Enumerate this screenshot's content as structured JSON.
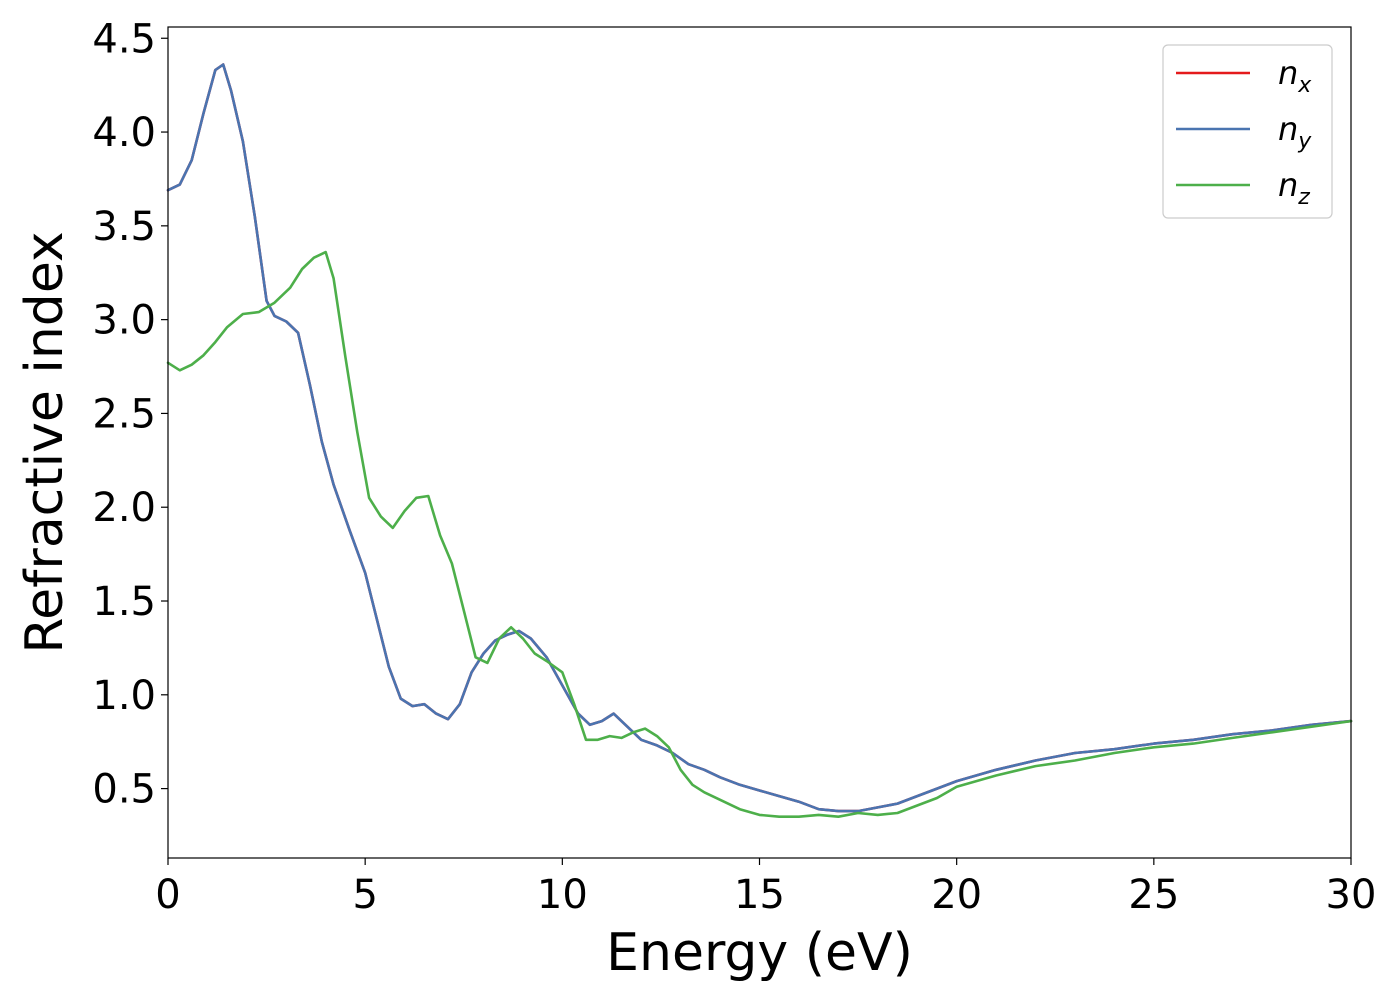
{
  "chart_data": {
    "type": "line",
    "title": "",
    "xlabel": "Energy (eV)",
    "ylabel": "Refractive index",
    "xlim": [
      0,
      30
    ],
    "ylim": [
      0.13,
      4.56
    ],
    "xticks": [
      0,
      5,
      10,
      15,
      20,
      25,
      30
    ],
    "xtick_labels": [
      "0",
      "5",
      "10",
      "15",
      "20",
      "25",
      "30"
    ],
    "yticks": [
      0.5,
      1.0,
      1.5,
      2.0,
      2.5,
      3.0,
      3.5,
      4.0,
      4.5
    ],
    "ytick_labels": [
      "0.5",
      "1.0",
      "1.5",
      "2.0",
      "2.5",
      "3.0",
      "3.5",
      "4.0",
      "4.5"
    ],
    "grid": false,
    "legend_position": "top-right",
    "series": [
      {
        "name": "n_x",
        "legend_base": "n",
        "legend_sub": "x",
        "color": "#e41a1c",
        "x": [
          0,
          0.3,
          0.6,
          0.9,
          1.2,
          1.4,
          1.6,
          1.9,
          2.2,
          2.5,
          2.7,
          3.0,
          3.3,
          3.6,
          3.9,
          4.2,
          4.6,
          5.0,
          5.3,
          5.6,
          5.9,
          6.2,
          6.5,
          6.8,
          7.1,
          7.4,
          7.7,
          8.0,
          8.3,
          8.6,
          8.9,
          9.2,
          9.6,
          10.0,
          10.4,
          10.7,
          11.0,
          11.3,
          11.6,
          12.0,
          12.4,
          12.8,
          13.2,
          13.6,
          14.0,
          14.5,
          15.0,
          15.5,
          16.0,
          16.5,
          17.0,
          17.5,
          18.0,
          18.5,
          19.0,
          19.5,
          20.0,
          21.0,
          22.0,
          23.0,
          24.0,
          25.0,
          26.0,
          27.0,
          28.0,
          29.0,
          30.0
        ],
        "y": [
          3.69,
          3.72,
          3.85,
          4.1,
          4.33,
          4.36,
          4.22,
          3.95,
          3.55,
          3.1,
          3.02,
          2.99,
          2.93,
          2.65,
          2.35,
          2.12,
          1.88,
          1.65,
          1.4,
          1.15,
          0.98,
          0.94,
          0.95,
          0.9,
          0.87,
          0.95,
          1.12,
          1.22,
          1.29,
          1.32,
          1.34,
          1.3,
          1.2,
          1.05,
          0.9,
          0.84,
          0.86,
          0.9,
          0.84,
          0.76,
          0.73,
          0.69,
          0.63,
          0.6,
          0.56,
          0.52,
          0.49,
          0.46,
          0.43,
          0.39,
          0.38,
          0.38,
          0.4,
          0.42,
          0.46,
          0.5,
          0.54,
          0.6,
          0.65,
          0.69,
          0.71,
          0.74,
          0.76,
          0.79,
          0.81,
          0.84,
          0.86
        ]
      },
      {
        "name": "n_y",
        "legend_base": "n",
        "legend_sub": "y",
        "color": "#4a74b0",
        "x": [
          0,
          0.3,
          0.6,
          0.9,
          1.2,
          1.4,
          1.6,
          1.9,
          2.2,
          2.5,
          2.7,
          3.0,
          3.3,
          3.6,
          3.9,
          4.2,
          4.6,
          5.0,
          5.3,
          5.6,
          5.9,
          6.2,
          6.5,
          6.8,
          7.1,
          7.4,
          7.7,
          8.0,
          8.3,
          8.6,
          8.9,
          9.2,
          9.6,
          10.0,
          10.4,
          10.7,
          11.0,
          11.3,
          11.6,
          12.0,
          12.4,
          12.8,
          13.2,
          13.6,
          14.0,
          14.5,
          15.0,
          15.5,
          16.0,
          16.5,
          17.0,
          17.5,
          18.0,
          18.5,
          19.0,
          19.5,
          20.0,
          21.0,
          22.0,
          23.0,
          24.0,
          25.0,
          26.0,
          27.0,
          28.0,
          29.0,
          30.0
        ],
        "y": [
          3.69,
          3.72,
          3.85,
          4.1,
          4.33,
          4.36,
          4.22,
          3.95,
          3.55,
          3.1,
          3.02,
          2.99,
          2.93,
          2.65,
          2.35,
          2.12,
          1.88,
          1.65,
          1.4,
          1.15,
          0.98,
          0.94,
          0.95,
          0.9,
          0.87,
          0.95,
          1.12,
          1.22,
          1.29,
          1.32,
          1.34,
          1.3,
          1.2,
          1.05,
          0.9,
          0.84,
          0.86,
          0.9,
          0.84,
          0.76,
          0.73,
          0.69,
          0.63,
          0.6,
          0.56,
          0.52,
          0.49,
          0.46,
          0.43,
          0.39,
          0.38,
          0.38,
          0.4,
          0.42,
          0.46,
          0.5,
          0.54,
          0.6,
          0.65,
          0.69,
          0.71,
          0.74,
          0.76,
          0.79,
          0.81,
          0.84,
          0.86
        ]
      },
      {
        "name": "n_z",
        "legend_base": "n",
        "legend_sub": "z",
        "color": "#4daf4a",
        "x": [
          0,
          0.3,
          0.6,
          0.9,
          1.2,
          1.5,
          1.9,
          2.3,
          2.7,
          3.1,
          3.4,
          3.7,
          4.0,
          4.2,
          4.5,
          4.8,
          5.1,
          5.4,
          5.7,
          6.0,
          6.3,
          6.6,
          6.9,
          7.2,
          7.5,
          7.8,
          8.1,
          8.4,
          8.7,
          9.0,
          9.3,
          9.6,
          10.0,
          10.3,
          10.6,
          10.9,
          11.2,
          11.5,
          11.8,
          12.1,
          12.4,
          12.7,
          13.0,
          13.3,
          13.6,
          14.0,
          14.5,
          15.0,
          15.5,
          16.0,
          16.5,
          17.0,
          17.5,
          18.0,
          18.5,
          19.0,
          19.5,
          20.0,
          21.0,
          22.0,
          23.0,
          24.0,
          25.0,
          26.0,
          27.0,
          28.0,
          29.0,
          30.0
        ],
        "y": [
          2.77,
          2.73,
          2.76,
          2.81,
          2.88,
          2.96,
          3.03,
          3.04,
          3.09,
          3.17,
          3.27,
          3.33,
          3.36,
          3.22,
          2.8,
          2.4,
          2.05,
          1.95,
          1.89,
          1.98,
          2.05,
          2.06,
          1.85,
          1.7,
          1.45,
          1.2,
          1.17,
          1.3,
          1.36,
          1.3,
          1.22,
          1.18,
          1.12,
          0.95,
          0.76,
          0.76,
          0.78,
          0.77,
          0.8,
          0.82,
          0.78,
          0.72,
          0.6,
          0.52,
          0.48,
          0.44,
          0.39,
          0.36,
          0.35,
          0.35,
          0.36,
          0.35,
          0.37,
          0.36,
          0.37,
          0.41,
          0.45,
          0.51,
          0.57,
          0.62,
          0.65,
          0.69,
          0.72,
          0.74,
          0.77,
          0.8,
          0.83,
          0.86
        ]
      }
    ]
  }
}
